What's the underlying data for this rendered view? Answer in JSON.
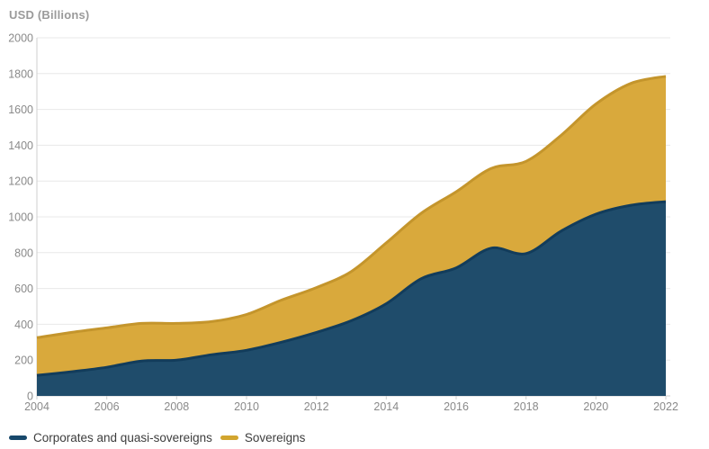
{
  "title": "USD (Billions)",
  "legend": [
    {
      "label": "Corporates and quasi-sovereigns",
      "marker_color": "#17486B"
    },
    {
      "label": "Sovereigns",
      "marker_color": "#D2A52E"
    }
  ],
  "colors": {
    "background": "#ffffff",
    "title_text": "#9a9a9a",
    "axis_label_text": "#8a8a8a",
    "legend_text": "#3d3d3d",
    "gridline": "#e8e8e8",
    "axis_line": "#cfcfcf",
    "corporates_fill": "#1F4C6B",
    "corporates_edge": "#123C5B",
    "sovereigns_fill": "#D9A93C",
    "sovereigns_edge": "#C4952C"
  },
  "chart_data": {
    "type": "area",
    "stacked": true,
    "title": "USD (Billions)",
    "x": [
      2004,
      2005,
      2006,
      2007,
      2008,
      2009,
      2010,
      2011,
      2012,
      2013,
      2014,
      2015,
      2016,
      2017,
      2018,
      2019,
      2020,
      2021,
      2022
    ],
    "series": [
      {
        "name": "Corporates and quasi-sovereigns",
        "values": [
          115,
          135,
          160,
          195,
          200,
          230,
          255,
          300,
          355,
          420,
          515,
          655,
          715,
          825,
          795,
          920,
          1015,
          1065,
          1085
        ],
        "fill": "#1F4C6B",
        "stroke": "#123C5B"
      },
      {
        "name": "Sovereigns",
        "values": [
          210,
          220,
          220,
          210,
          205,
          185,
          200,
          235,
          250,
          275,
          340,
          365,
          425,
          445,
          515,
          535,
          615,
          680,
          700
        ],
        "fill": "#D9A93C",
        "stroke": "#C4952C"
      }
    ],
    "stacked_totals": [
      325,
      355,
      380,
      405,
      405,
      415,
      455,
      535,
      605,
      695,
      855,
      1020,
      1140,
      1270,
      1310,
      1455,
      1630,
      1745,
      1785
    ],
    "xlabel": "",
    "ylabel": "USD (Billions)",
    "ylim": [
      0,
      2000
    ],
    "yticks": [
      0,
      200,
      400,
      600,
      800,
      1000,
      1200,
      1400,
      1600,
      1800,
      2000
    ],
    "xticks": [
      2004,
      2006,
      2008,
      2010,
      2012,
      2014,
      2016,
      2018,
      2020,
      2022
    ],
    "grid": true,
    "legend_position": "bottom-left"
  }
}
